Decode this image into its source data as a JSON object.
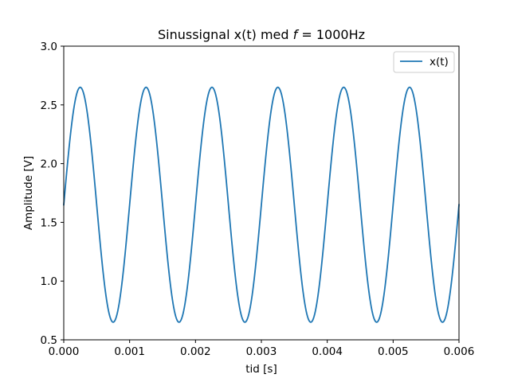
{
  "chart_data": {
    "type": "line",
    "title": "Sinussignal x(t) med f = 1000Hz",
    "title_parts": {
      "prefix": "Sinussignal x(t) med ",
      "variable": "f",
      "suffix": " = 1000Hz"
    },
    "xlabel": "tid [s]",
    "ylabel": "Amplitude [V]",
    "xlim": [
      0,
      0.006
    ],
    "ylim": [
      0.5,
      3.0
    ],
    "xticks": [
      0,
      0.001,
      0.002,
      0.003,
      0.004,
      0.005,
      0.006
    ],
    "xtick_labels": [
      "0.000",
      "0.001",
      "0.002",
      "0.003",
      "0.004",
      "0.005",
      "0.006"
    ],
    "yticks": [
      0.5,
      1.0,
      1.5,
      2.0,
      2.5,
      3.0
    ],
    "ytick_labels": [
      "0.5",
      "1.0",
      "1.5",
      "2.0",
      "2.5",
      "3.0"
    ],
    "grid": false,
    "legend_position": "top-right",
    "series": [
      {
        "name": "x(t)",
        "color": "#1f77b4",
        "function": "sine",
        "offset": 1.65,
        "amplitude": 1.0,
        "frequency_hz": 1000,
        "phase": 0
      }
    ]
  }
}
